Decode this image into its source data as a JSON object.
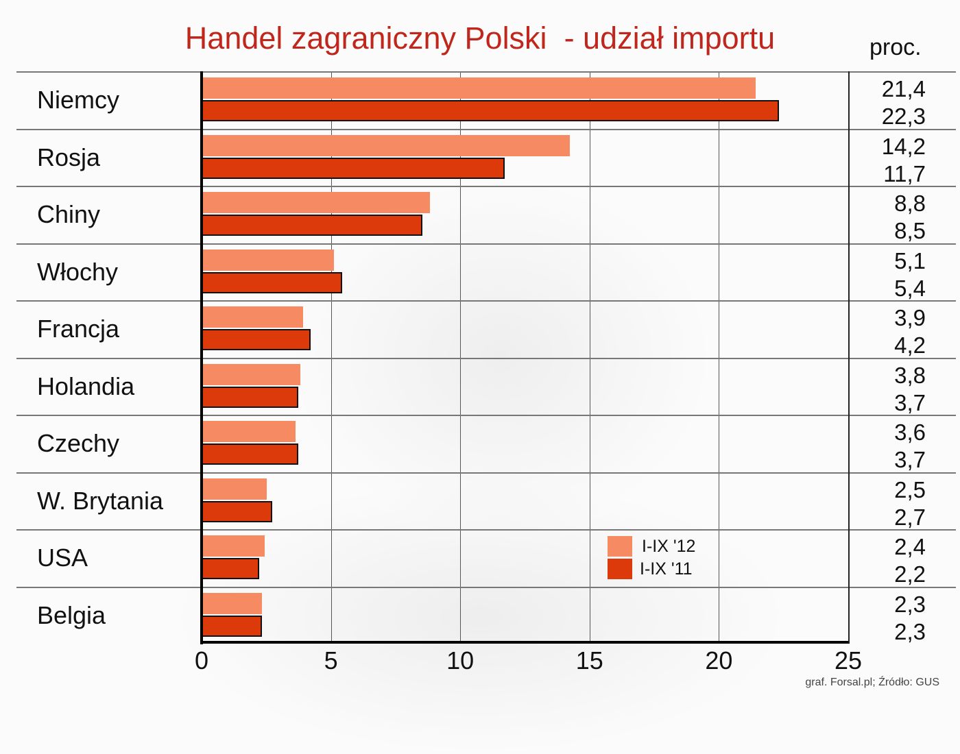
{
  "title": "Handel zagraniczny Polski  - udział importu",
  "unit_label": "proc.",
  "source": "graf. Forsal.pl; Źródło: GUS",
  "colors": {
    "title": "#c0271c",
    "series_2012": "#f58a63",
    "series_2011": "#dc3a0a"
  },
  "legend": [
    {
      "label": "I-IX '12",
      "color": "#f58a63"
    },
    {
      "label": "I-IX '11",
      "color": "#dc3a0a"
    }
  ],
  "x_ticks": [
    "0",
    "5",
    "10",
    "15",
    "20",
    "25"
  ],
  "rows": [
    {
      "country": "Niemcy",
      "v12": "21,4",
      "v11": "22,3"
    },
    {
      "country": "Rosja",
      "v12": "14,2",
      "v11": "11,7"
    },
    {
      "country": "Chiny",
      "v12": "8,8",
      "v11": "8,5"
    },
    {
      "country": "Włochy",
      "v12": "5,1",
      "v11": "5,4"
    },
    {
      "country": "Francja",
      "v12": "3,9",
      "v11": "4,2"
    },
    {
      "country": "Holandia",
      "v12": "3,8",
      "v11": "3,7"
    },
    {
      "country": "Czechy",
      "v12": "3,6",
      "v11": "3,7"
    },
    {
      "country": "W. Brytania",
      "v12": "2,5",
      "v11": "2,7"
    },
    {
      "country": "USA",
      "v12": "2,4",
      "v11": "2,2"
    },
    {
      "country": "Belgia",
      "v12": "2,3",
      "v11": "2,3"
    }
  ],
  "chart_data": {
    "type": "bar",
    "orientation": "horizontal",
    "title": "Handel zagraniczny Polski  - udział importu",
    "xlabel": "",
    "ylabel": "",
    "unit": "proc.",
    "categories": [
      "Niemcy",
      "Rosja",
      "Chiny",
      "Włochy",
      "Francja",
      "Holandia",
      "Czechy",
      "W. Brytania",
      "USA",
      "Belgia"
    ],
    "series": [
      {
        "name": "I-IX '12",
        "color": "#f58a63",
        "values": [
          21.4,
          14.2,
          8.8,
          5.1,
          3.9,
          3.8,
          3.6,
          2.5,
          2.4,
          2.3
        ]
      },
      {
        "name": "I-IX '11",
        "color": "#dc3a0a",
        "values": [
          22.3,
          11.7,
          8.5,
          5.4,
          4.2,
          3.7,
          3.7,
          2.7,
          2.2,
          2.3
        ]
      }
    ],
    "xlim": [
      0,
      25
    ],
    "x_ticks": [
      0,
      5,
      10,
      15,
      20,
      25
    ],
    "grid": true,
    "legend_position": "lower-right inside plot",
    "source": "graf. Forsal.pl; Źródło: GUS"
  }
}
